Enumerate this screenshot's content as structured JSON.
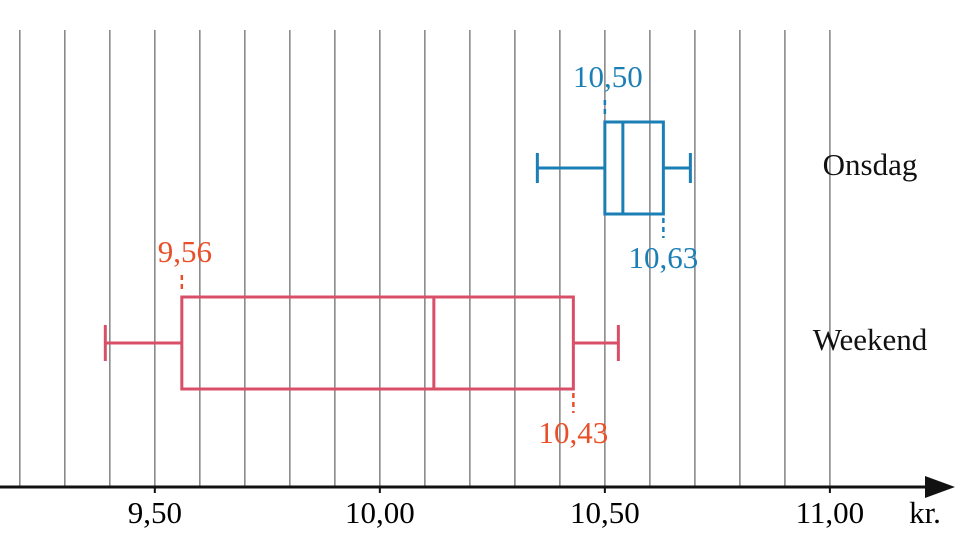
{
  "chart_data": {
    "type": "boxplot",
    "orientation": "horizontal",
    "x_unit": "kr.",
    "xlim": [
      9.156,
      11.278
    ],
    "xticks": [
      {
        "value": 9.5,
        "label": "9,50"
      },
      {
        "value": 10.0,
        "label": "10,00"
      },
      {
        "value": 10.5,
        "label": "10,50"
      },
      {
        "value": 11.0,
        "label": "11,00"
      }
    ],
    "xgrid": [
      9.2,
      9.3,
      9.4,
      9.5,
      9.6,
      9.7,
      9.8,
      9.9,
      10.0,
      10.1,
      10.2,
      10.3,
      10.4,
      10.5,
      10.6,
      10.7,
      10.8,
      10.9,
      11.0
    ],
    "grid": true,
    "series": [
      {
        "name": "Onsdag",
        "color": "#1b7fb6",
        "label_color": "#1b7fb6",
        "min": 10.35,
        "q1": 10.5,
        "median": 10.54,
        "q3": 10.63,
        "max": 10.69,
        "value_labels": {
          "q1": "10,50",
          "q3": "10,63"
        }
      },
      {
        "name": "Weekend",
        "color": "#d94f68",
        "label_color": "#e8502a",
        "min": 9.39,
        "q1": 9.56,
        "median": 10.12,
        "q3": 10.43,
        "max": 10.53,
        "value_labels": {
          "q1": "9,56",
          "q3": "10,43"
        }
      }
    ]
  }
}
